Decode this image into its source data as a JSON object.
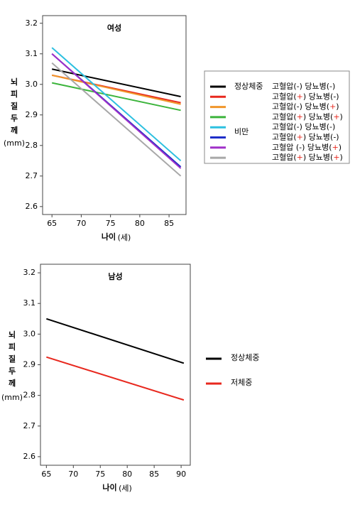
{
  "chart_data": [
    {
      "type": "line",
      "title": "여성",
      "xlabel": "나이",
      "xlabel_unit": "(세)",
      "ylabel": [
        "뇌",
        "피",
        "질",
        "두",
        "께"
      ],
      "ylabel_unit": "(mm)",
      "x": [
        65,
        87
      ],
      "xlim": [
        63.4,
        87.9
      ],
      "xticks": [
        65,
        70,
        75,
        80,
        85
      ],
      "ylim": [
        2.574,
        3.225
      ],
      "yticks": [
        2.6,
        2.7,
        2.8,
        2.9,
        3.0,
        3.1,
        3.2
      ],
      "legend_boxed": true,
      "legend_groups": [
        "정상체중",
        "비만"
      ],
      "series": [
        {
          "name": "고혈압(-) 당뇨병(-)",
          "group": 0,
          "color": "#000000",
          "values": [
            3.05,
            2.96
          ]
        },
        {
          "name": "고혈압(+) 당뇨병(-)",
          "color": "#e8281e",
          "values": [
            3.03,
            2.94
          ]
        },
        {
          "name": "고혈압(-) 당뇨병(+)",
          "color": "#f0962a",
          "values": [
            3.03,
            2.935
          ]
        },
        {
          "name": "고혈압(+) 당뇨병(+)",
          "color": "#3cb43c",
          "values": [
            3.005,
            2.915
          ]
        },
        {
          "name": "고혈압(-) 당뇨병(-)",
          "group": 1,
          "color": "#2cc0e0",
          "values": [
            3.12,
            2.75
          ]
        },
        {
          "name": "고혈압(+) 당뇨병(-)",
          "color": "#1e2ec8",
          "values": [
            3.1,
            2.73
          ]
        },
        {
          "name": "고혈압 (-) 당뇨병(+)",
          "color": "#a030c8",
          "values": [
            3.1,
            2.725
          ]
        },
        {
          "name": "고혈압(+) 당뇨병(+)",
          "color": "#a8a8a8",
          "values": [
            3.07,
            2.7
          ]
        }
      ]
    },
    {
      "type": "line",
      "title": "남성",
      "xlabel": "나이",
      "xlabel_unit": "(세)",
      "ylabel": [
        "뇌",
        "피",
        "질",
        "두",
        "께"
      ],
      "ylabel_unit": "(mm)",
      "x": [
        65,
        90.5
      ],
      "xlim": [
        63.9,
        91.7
      ],
      "xticks": [
        65,
        70,
        75,
        80,
        85,
        90
      ],
      "ylim": [
        2.572,
        3.228
      ],
      "yticks": [
        2.6,
        2.7,
        2.8,
        2.9,
        3.0,
        3.1,
        3.2
      ],
      "legend_boxed": false,
      "series": [
        {
          "name": "정상체중",
          "color": "#000000",
          "values": [
            3.05,
            2.905
          ]
        },
        {
          "name": "저체중",
          "color": "#e8281e",
          "values": [
            2.925,
            2.785
          ]
        }
      ]
    }
  ]
}
